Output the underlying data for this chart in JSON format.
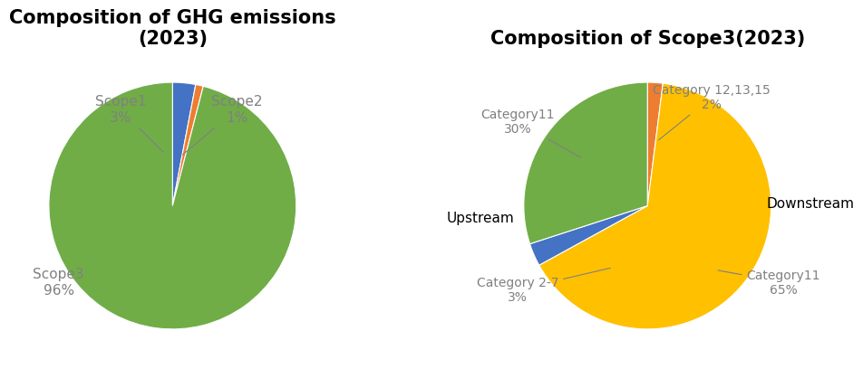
{
  "chart1": {
    "title": "Composition of GHG emissions\n(2023)",
    "values": [
      3,
      1,
      96
    ],
    "colors": [
      "#4472C4",
      "#ED7D31",
      "#70AD47"
    ],
    "startangle": 90
  },
  "chart2": {
    "title": "Composition of Scope3(2023)",
    "values": [
      2,
      65,
      3,
      30
    ],
    "colors": [
      "#ED7D31",
      "#FFC000",
      "#4472C4",
      "#70AD47"
    ],
    "startangle": 90
  },
  "background_color": "#FFFFFF",
  "title_fontsize": 15,
  "label_fontsize": 11
}
